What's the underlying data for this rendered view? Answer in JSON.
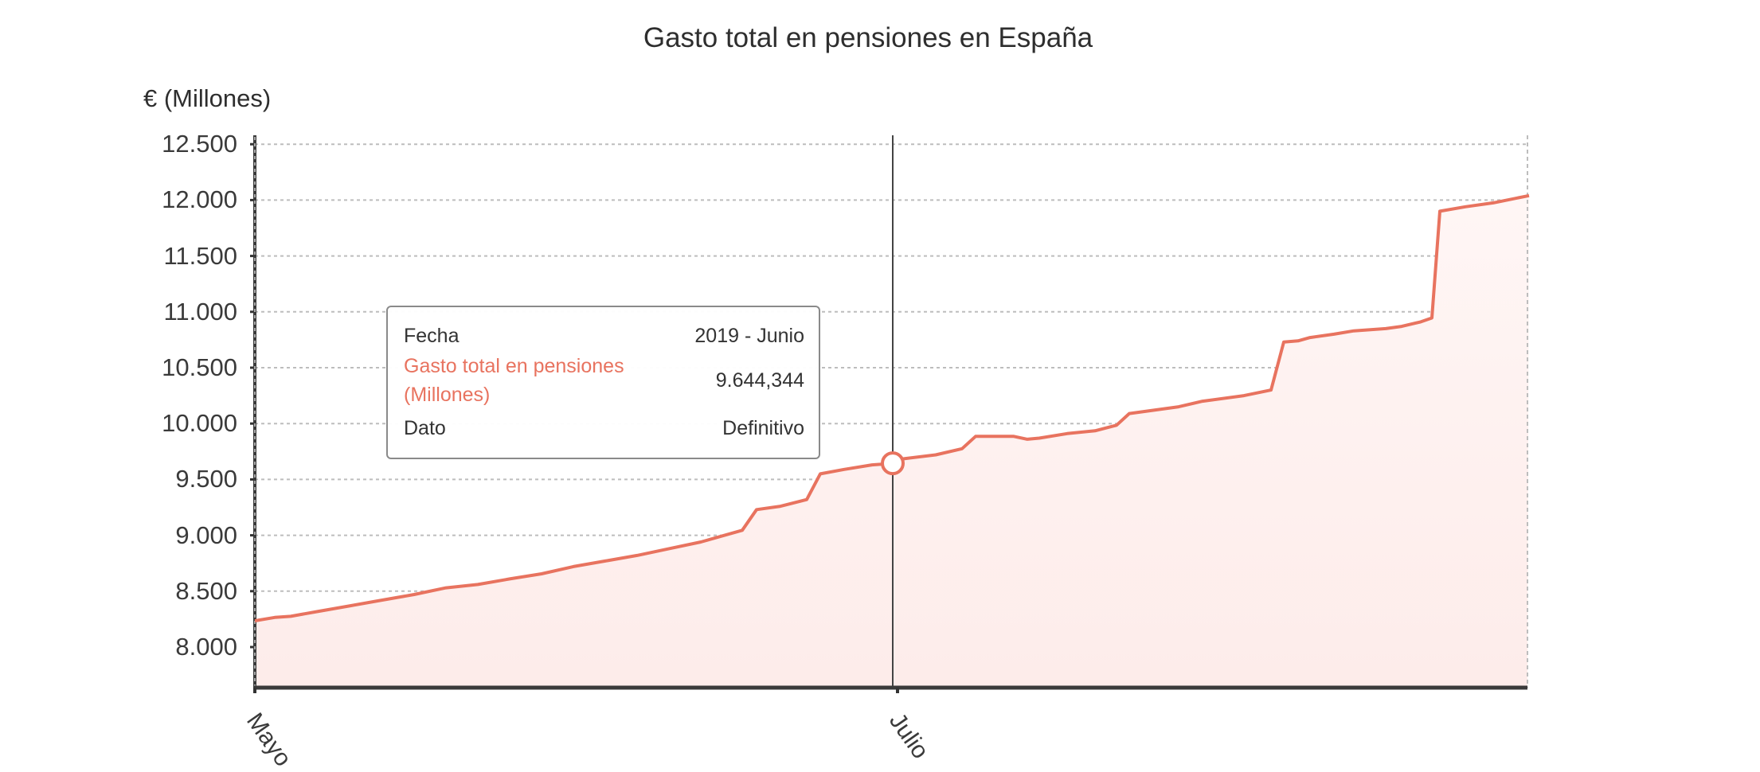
{
  "chart_data": {
    "type": "area",
    "title": "Gasto total en pensiones en España",
    "xlabel": "",
    "ylabel": "€ (Millones)",
    "ylim": [
      7636,
      12500
    ],
    "y_ticks": [
      "12.500",
      "12.000",
      "11.500",
      "11.000",
      "10.500",
      "10.000",
      "9.500",
      "9.000",
      "8.500",
      "8.000"
    ],
    "y_tick_values": [
      12500,
      12000,
      11500,
      11000,
      10500,
      10000,
      9500,
      9000,
      8500,
      8000
    ],
    "x_ticks": [
      "Mayo",
      "Julio"
    ],
    "grid": true,
    "series": [
      {
        "name": "Gasto total en pensiones (Millones)",
        "color": "#e8735f",
        "fill": "#fdeeec",
        "points": [
          [
            320,
            8235
          ],
          [
            345,
            8265
          ],
          [
            365,
            8275
          ],
          [
            400,
            8320
          ],
          [
            440,
            8370
          ],
          [
            480,
            8420
          ],
          [
            520,
            8470
          ],
          [
            560,
            8530
          ],
          [
            600,
            8560
          ],
          [
            640,
            8610
          ],
          [
            680,
            8655
          ],
          [
            720,
            8720
          ],
          [
            760,
            8770
          ],
          [
            800,
            8820
          ],
          [
            840,
            8880
          ],
          [
            880,
            8940
          ],
          [
            932,
            9045
          ],
          [
            950,
            9230
          ],
          [
            980,
            9260
          ],
          [
            1013,
            9320
          ],
          [
            1030,
            9550
          ],
          [
            1060,
            9590
          ],
          [
            1095,
            9630
          ],
          [
            1121,
            9644
          ],
          [
            1135,
            9685
          ],
          [
            1175,
            9720
          ],
          [
            1208,
            9775
          ],
          [
            1225,
            9885
          ],
          [
            1273,
            9885
          ],
          [
            1290,
            9860
          ],
          [
            1305,
            9870
          ],
          [
            1340,
            9910
          ],
          [
            1375,
            9935
          ],
          [
            1402,
            9985
          ],
          [
            1418,
            10090
          ],
          [
            1480,
            10150
          ],
          [
            1510,
            10200
          ],
          [
            1562,
            10250
          ],
          [
            1596,
            10300
          ],
          [
            1612,
            10730
          ],
          [
            1630,
            10740
          ],
          [
            1645,
            10770
          ],
          [
            1675,
            10800
          ],
          [
            1700,
            10830
          ],
          [
            1740,
            10850
          ],
          [
            1760,
            10870
          ],
          [
            1784,
            10910
          ],
          [
            1798,
            10945
          ],
          [
            1808,
            11900
          ],
          [
            1840,
            11940
          ],
          [
            1875,
            11975
          ],
          [
            1920,
            12040
          ]
        ]
      }
    ],
    "highlight": {
      "x": 1121,
      "value": 9644.344
    }
  },
  "tooltip": {
    "rows": [
      {
        "key": "Fecha",
        "value": "2019 - Junio"
      },
      {
        "key": "Gasto total en pensiones (Millones)",
        "value": "9.644,344"
      },
      {
        "key": "Dato",
        "value": "Definitivo"
      }
    ]
  }
}
